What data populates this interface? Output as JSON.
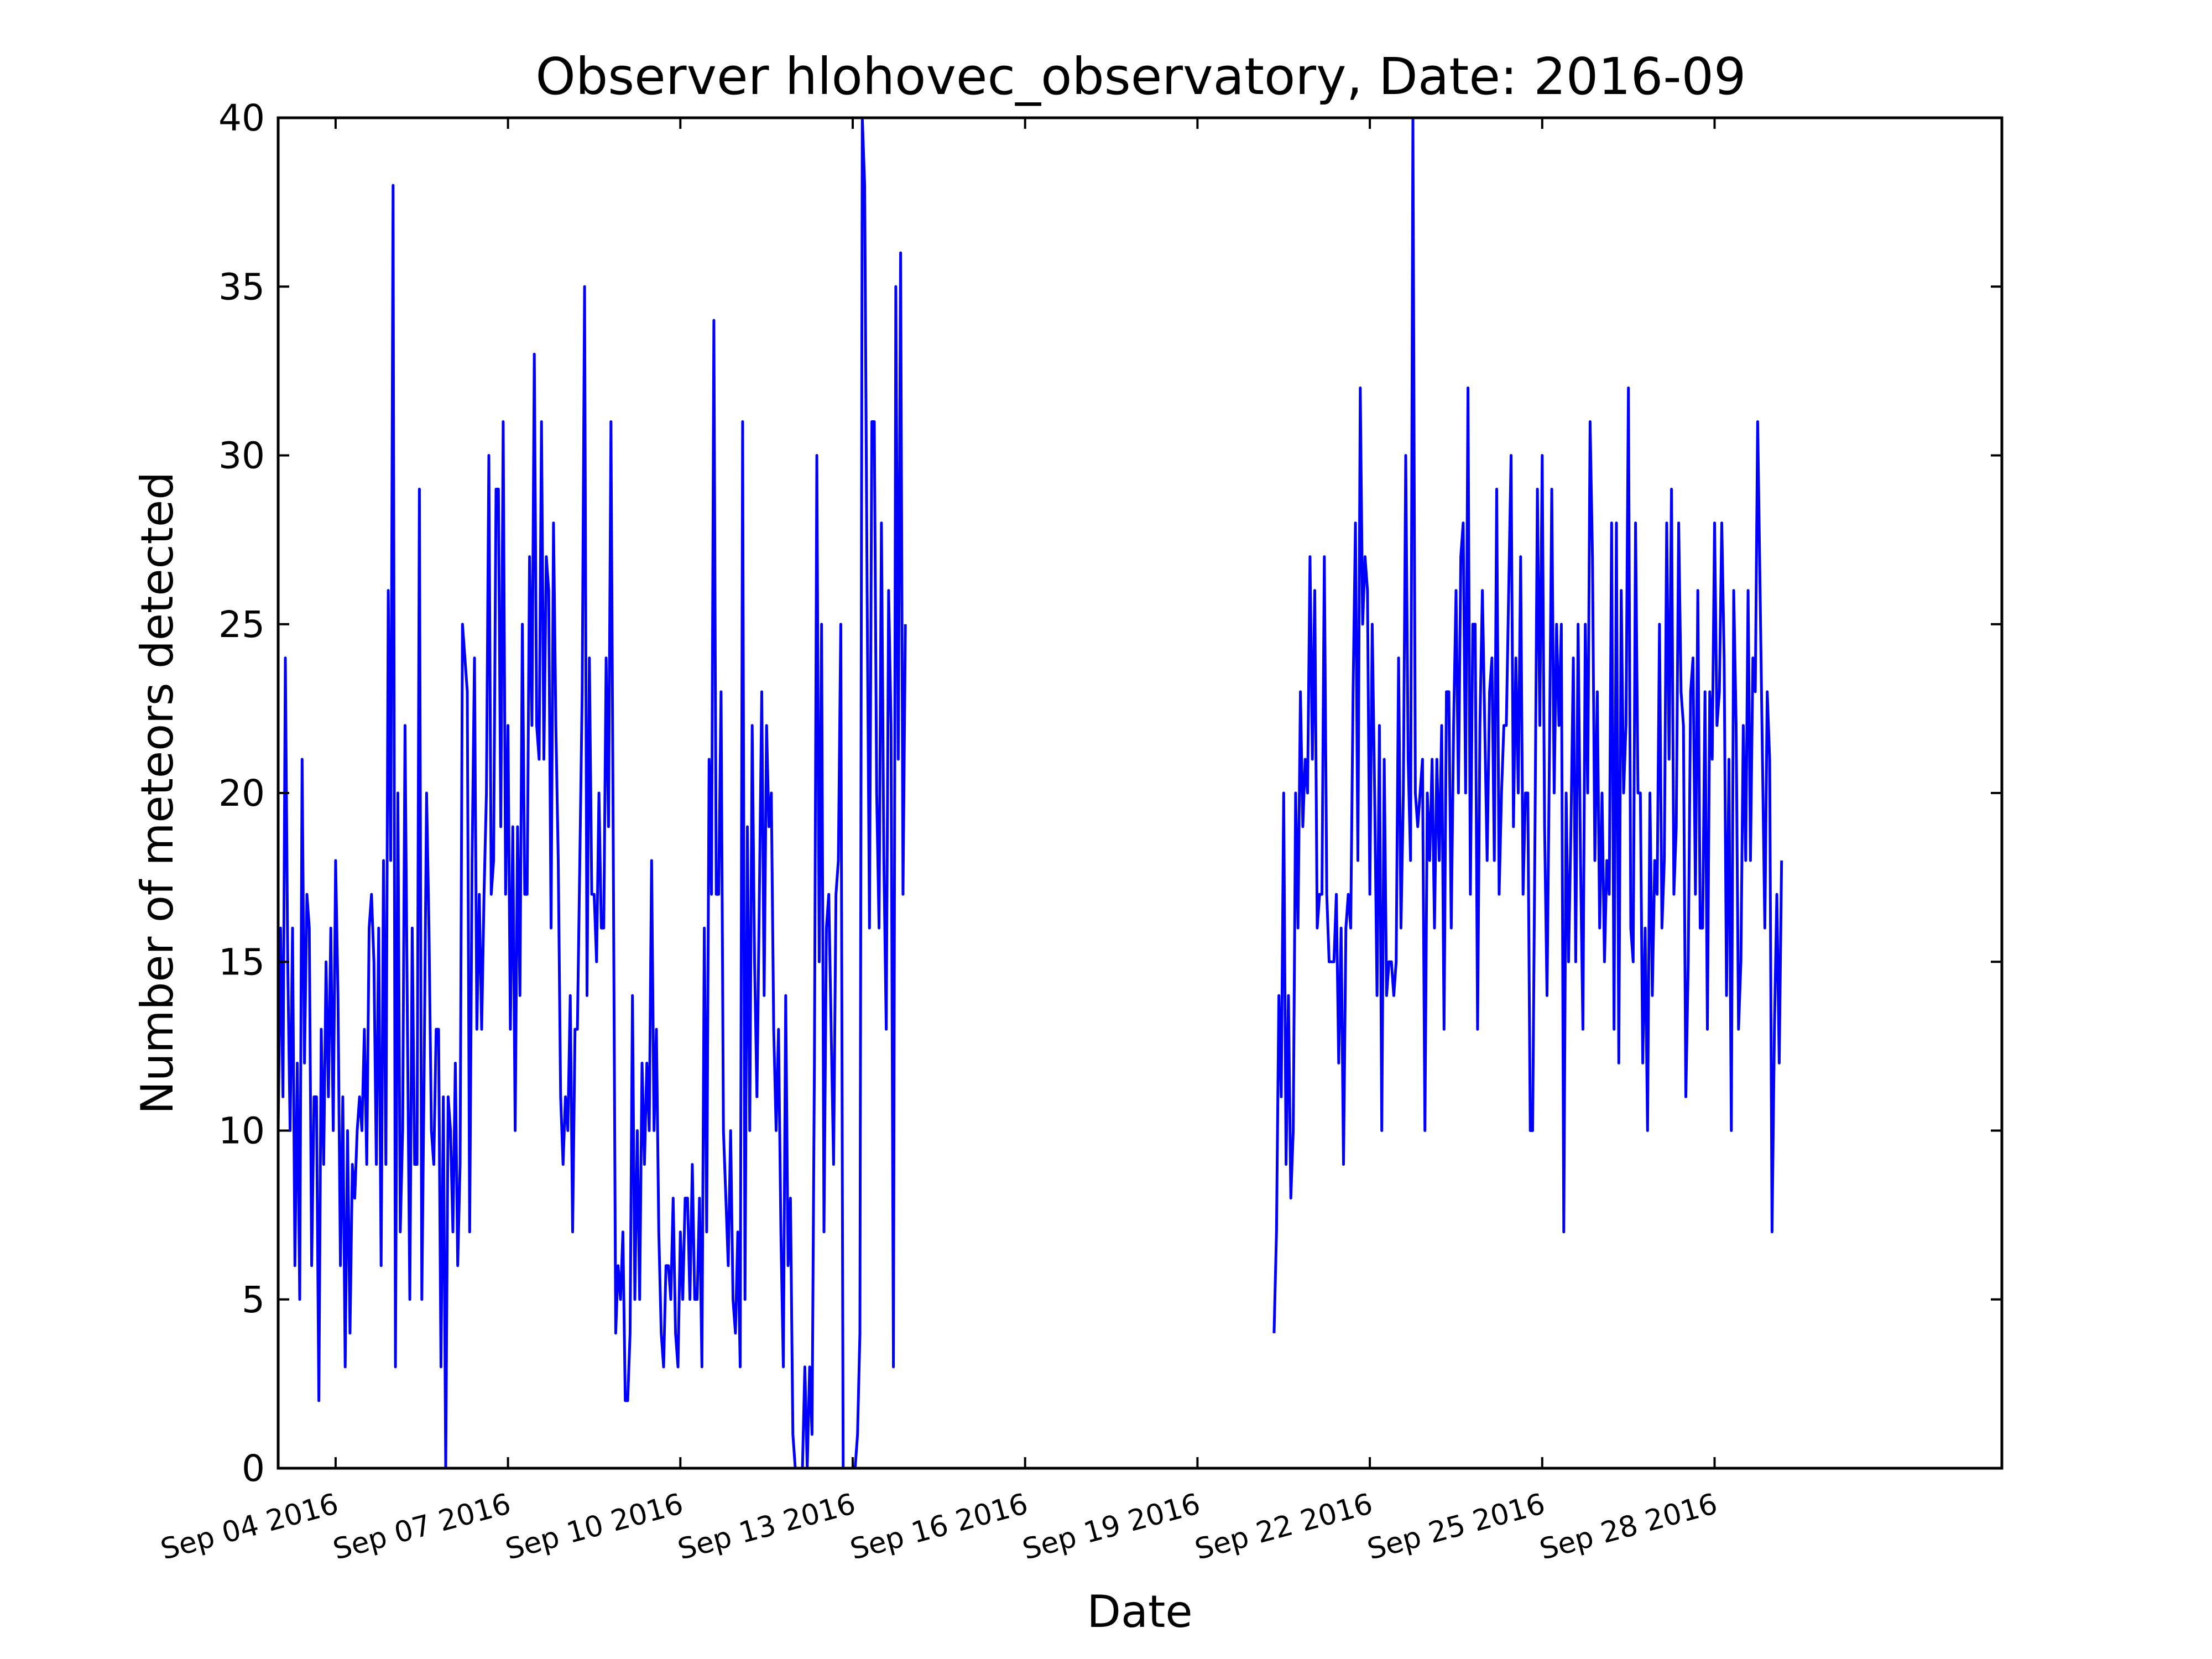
{
  "chart_data": {
    "type": "line",
    "title": "Observer hlohovec_observatory, Date: 2016-09",
    "xlabel": "Date",
    "ylabel": "Number of meteors detected",
    "ylim": [
      0,
      40
    ],
    "yticks": [
      0,
      5,
      10,
      15,
      20,
      25,
      30,
      35,
      40
    ],
    "xlim": [
      "2016-09-03",
      "2016-10-03"
    ],
    "xticks": [
      {
        "date": "2016-09-04",
        "label": "Sep 04 2016"
      },
      {
        "date": "2016-09-07",
        "label": "Sep 07 2016"
      },
      {
        "date": "2016-09-10",
        "label": "Sep 10 2016"
      },
      {
        "date": "2016-09-13",
        "label": "Sep 13 2016"
      },
      {
        "date": "2016-09-16",
        "label": "Sep 16 2016"
      },
      {
        "date": "2016-09-19",
        "label": "Sep 19 2016"
      },
      {
        "date": "2016-09-22",
        "label": "Sep 22 2016"
      },
      {
        "date": "2016-09-25",
        "label": "Sep 25 2016"
      },
      {
        "date": "2016-09-28",
        "label": "Sep 28 2016"
      }
    ],
    "grid": false,
    "series": [
      {
        "color": "#0000ff",
        "segments": [
          {
            "start": "2016-09-03T00:00",
            "step_hours": 1,
            "values": [
              10,
              16,
              11,
              24,
              15,
              10,
              16,
              6,
              12,
              5,
              21,
              12,
              17,
              16,
              6,
              11,
              11,
              2,
              13,
              9,
              15,
              11,
              16,
              10,
              18,
              14,
              6,
              11,
              3,
              10,
              4,
              9,
              8,
              10,
              11,
              10,
              13,
              9,
              16,
              17,
              15,
              9,
              16,
              6,
              18,
              9,
              26,
              18,
              38,
              3,
              20,
              7,
              10,
              22,
              13,
              5,
              16,
              9,
              9,
              29,
              5,
              12,
              20,
              16,
              10,
              9,
              13,
              13,
              3,
              11,
              0,
              11,
              10,
              7,
              12,
              6,
              9,
              25,
              24,
              23,
              7,
              18,
              24,
              13,
              17,
              13,
              17,
              20,
              30,
              17,
              18,
              29,
              29,
              19,
              31,
              17,
              22,
              13,
              19,
              10,
              19,
              14,
              25,
              17,
              17,
              27,
              22,
              33,
              22,
              21,
              31,
              21,
              27,
              26,
              16,
              28,
              22,
              18,
              11,
              9,
              11,
              10,
              14,
              7,
              13,
              13,
              18,
              23,
              35,
              14,
              24,
              17,
              17,
              15,
              20,
              16,
              16,
              24,
              19,
              31,
              18,
              4,
              6,
              5,
              7,
              2,
              2,
              4,
              14,
              5,
              10,
              5,
              12,
              9,
              12,
              10,
              18,
              10,
              13,
              7,
              4,
              3,
              6,
              6,
              5,
              8,
              4,
              3,
              7,
              5,
              8,
              8,
              5,
              9,
              5,
              5,
              8,
              3,
              16,
              7,
              21,
              17,
              34,
              17,
              17,
              23,
              10,
              8,
              6,
              10,
              5,
              4,
              7,
              3,
              31,
              5,
              19,
              10,
              22,
              15,
              11,
              17,
              23,
              14,
              22,
              19,
              20,
              13,
              10,
              13,
              7,
              3,
              14,
              6,
              8,
              1,
              0,
              0,
              0,
              0,
              3,
              0,
              3,
              1,
              12,
              30,
              15,
              25,
              7,
              16,
              17,
              13,
              9,
              17,
              18,
              25,
              0,
              0,
              0,
              0,
              0,
              0,
              1,
              4,
              40,
              38,
              26,
              16,
              31,
              31,
              20,
              16,
              28,
              18,
              13,
              26,
              22,
              3,
              35,
              21,
              36,
              17,
              25
            ]
          },
          {
            "start": "2016-09-20T08:00",
            "step_hours": 1,
            "values": [
              4,
              7,
              14,
              11,
              20,
              9,
              14,
              8,
              10,
              20,
              16,
              23,
              19,
              21,
              20,
              27,
              21,
              26,
              16,
              17,
              17,
              27,
              17,
              15,
              15,
              15,
              17,
              12,
              16,
              9,
              16,
              17,
              16,
              23,
              28,
              18,
              32,
              25,
              27,
              26,
              17,
              25,
              20,
              14,
              22,
              10,
              21,
              14,
              15,
              15,
              14,
              15,
              24,
              16,
              20,
              30,
              21,
              18,
              40,
              20,
              19,
              20,
              21,
              10,
              20,
              18,
              21,
              16,
              21,
              18,
              22,
              13,
              23,
              23,
              16,
              22,
              26,
              20,
              27,
              28,
              20,
              32,
              17,
              25,
              25,
              13,
              22,
              26,
              22,
              18,
              23,
              24,
              18,
              29,
              17,
              20,
              22,
              22,
              26,
              30,
              19,
              24,
              20,
              27,
              17,
              20,
              20,
              10,
              10,
              19,
              29,
              22,
              30,
              19,
              14,
              21,
              29,
              20,
              25,
              22,
              25,
              7,
              20,
              15,
              19,
              24,
              15,
              25,
              18,
              13,
              25,
              20,
              31,
              27,
              18,
              23,
              16,
              20,
              15,
              18,
              17,
              28,
              13,
              28,
              12,
              26,
              20,
              22,
              32,
              16,
              15,
              28,
              20,
              20,
              12,
              16,
              10,
              20,
              14,
              18,
              17,
              25,
              16,
              18,
              28,
              21,
              29,
              17,
              19,
              28,
              23,
              22,
              11,
              15,
              23,
              24,
              17,
              26,
              16,
              16,
              23,
              13,
              23,
              21,
              28,
              22,
              23,
              28,
              24,
              14,
              21,
              10,
              26,
              22,
              13,
              15,
              22,
              18,
              26,
              18,
              24,
              23,
              31,
              26,
              21,
              16,
              23,
              21,
              7,
              13,
              17,
              12,
              18
            ]
          }
        ]
      }
    ]
  }
}
